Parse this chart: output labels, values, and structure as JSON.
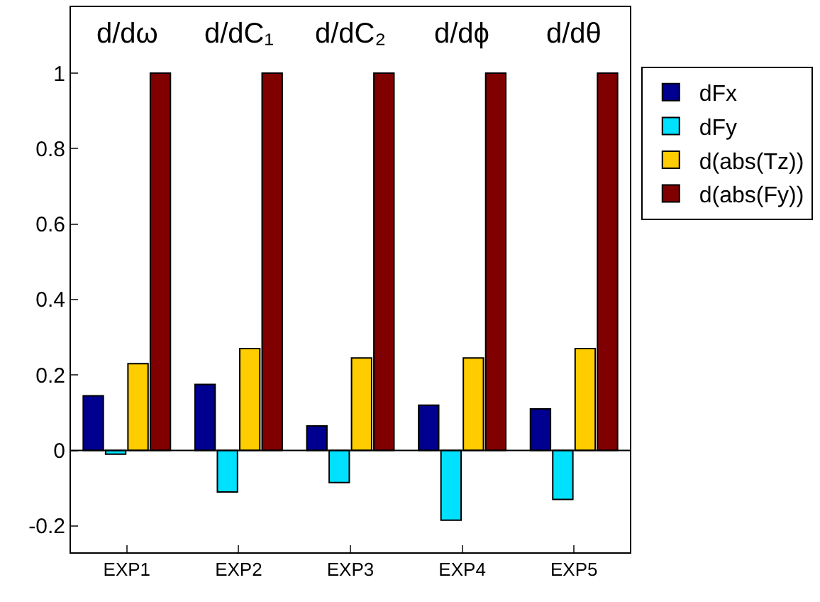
{
  "chart_data": {
    "type": "bar",
    "categories": [
      "EXP1",
      "EXP2",
      "EXP3",
      "EXP4",
      "EXP5"
    ],
    "series": [
      {
        "name": "dFx",
        "color": "#000090",
        "values": [
          0.145,
          0.175,
          0.065,
          0.12,
          0.11
        ]
      },
      {
        "name": "dFy",
        "color": "#00e0ff",
        "values": [
          -0.01,
          -0.11,
          -0.085,
          -0.185,
          -0.13
        ]
      },
      {
        "name": "d(abs(Tz))",
        "color": "#ffcc00",
        "values": [
          0.23,
          0.27,
          0.245,
          0.245,
          0.27
        ]
      },
      {
        "name": "d(abs(Fy))",
        "color": "#800000",
        "values": [
          1,
          1,
          1,
          1,
          1
        ]
      }
    ],
    "ylim": [
      -0.27,
      1.175
    ],
    "yticks": [
      -0.2,
      0,
      0.2,
      0.4,
      0.6,
      0.8,
      1
    ],
    "annotations": [
      "d/dω",
      "d/dC₁",
      "d/dC₂",
      "d/dϕ",
      "d/dθ"
    ],
    "ref_lines": [
      {
        "axis": "y",
        "value": 0,
        "color": "#000000"
      }
    ],
    "legend": "right"
  }
}
